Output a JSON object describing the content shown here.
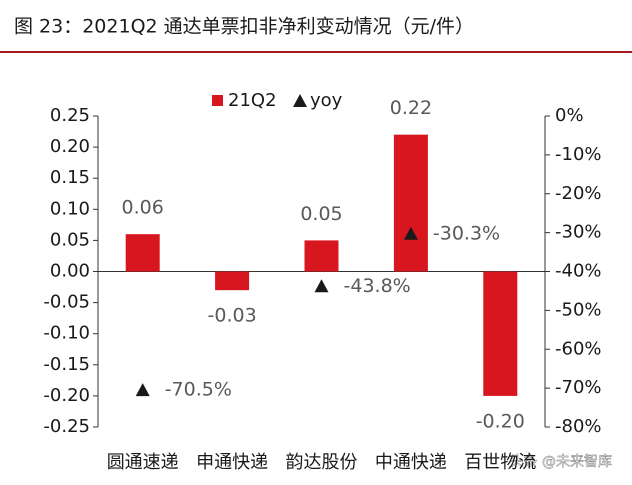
{
  "chart_data": {
    "type": "bar",
    "title": "图 23：2021Q2 通达单票扣非净利变动情况（元/件）",
    "watermark": "头条 @未来智库",
    "categories": [
      "圆通速递",
      "申通快递",
      "韵达股份",
      "中通快递",
      "百世物流"
    ],
    "series": [
      {
        "name": "21Q2",
        "type": "bar",
        "color": "#d7161f",
        "values": [
          0.06,
          -0.03,
          0.05,
          0.22,
          -0.2
        ],
        "value_labels": [
          "0.06",
          "-0.03",
          "0.05",
          "0.22",
          "-0.20"
        ]
      },
      {
        "name": "yoy",
        "type": "scatter",
        "axis": "y2",
        "color": "#1a1a1a",
        "values": [
          -70.5,
          null,
          -43.8,
          -30.3,
          null
        ],
        "value_labels": [
          "-70.5%",
          null,
          "-43.8%",
          "-30.3%",
          null
        ]
      }
    ],
    "ylim": [
      -0.25,
      0.25
    ],
    "yticks": [
      0.25,
      {
        "value": 0.2,
        "label": "0.20"
      },
      0.15,
      {
        "value": 0.1,
        "label": "0.10"
      },
      0.05,
      {
        "value": 0,
        "label": "0.00"
      },
      -0.05,
      {
        "value": -0.1,
        "label": "-0.10"
      },
      -0.15,
      {
        "value": -0.2,
        "label": "-0.20"
      },
      -0.25
    ],
    "y2lim": [
      -80,
      0
    ],
    "y2ticks": [
      {
        "value": 0,
        "label": "0%"
      },
      {
        "value": -10,
        "label": "-10%"
      },
      {
        "value": -20,
        "label": "-20%"
      },
      {
        "value": -30,
        "label": "-30%"
      },
      {
        "value": -40,
        "label": "-40%"
      },
      {
        "value": -50,
        "label": "-50%"
      },
      {
        "value": -60,
        "label": "-60%"
      },
      {
        "value": -70,
        "label": "-70%"
      },
      {
        "value": -80,
        "label": "-80%"
      }
    ],
    "legend": "top"
  }
}
